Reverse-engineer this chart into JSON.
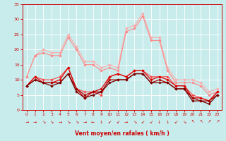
{
  "x": [
    0,
    1,
    2,
    3,
    4,
    5,
    6,
    7,
    8,
    9,
    10,
    11,
    12,
    13,
    14,
    15,
    16,
    17,
    18,
    19,
    20,
    21,
    22,
    23
  ],
  "series": [
    {
      "color": "#ffaaaa",
      "linewidth": 0.8,
      "marker": "D",
      "markersize": 1.8,
      "values": [
        11,
        18,
        20,
        19,
        19,
        25,
        21,
        16,
        16,
        14,
        15,
        14,
        27,
        28,
        32,
        24,
        24,
        14,
        10,
        10,
        10,
        9,
        6,
        7
      ]
    },
    {
      "color": "#ff8888",
      "linewidth": 0.8,
      "marker": "D",
      "markersize": 1.8,
      "values": [
        11,
        18,
        19,
        18,
        18,
        24,
        20,
        15,
        15,
        13,
        14,
        13,
        26,
        27,
        31,
        23,
        23,
        13,
        9,
        9,
        9,
        8,
        5,
        6
      ]
    },
    {
      "color": "#ff4444",
      "linewidth": 0.8,
      "marker": "D",
      "markersize": 1.8,
      "values": [
        8,
        11,
        10,
        10,
        11,
        14,
        7,
        6,
        6,
        5,
        11,
        12,
        11,
        13,
        13,
        11,
        11,
        11,
        8,
        8,
        5,
        4,
        3,
        6
      ]
    },
    {
      "color": "#dd0000",
      "linewidth": 0.9,
      "marker": "D",
      "markersize": 1.8,
      "values": [
        8,
        11,
        9,
        9,
        10,
        14,
        7,
        4,
        6,
        7,
        11,
        12,
        11,
        13,
        13,
        10,
        11,
        10,
        8,
        8,
        4,
        4,
        3,
        6
      ]
    },
    {
      "color": "#aa0000",
      "linewidth": 0.9,
      "marker": "D",
      "markersize": 1.8,
      "values": [
        8,
        10,
        9,
        9,
        9,
        12,
        7,
        5,
        6,
        6,
        10,
        10,
        10,
        12,
        12,
        9,
        10,
        9,
        7,
        7,
        4,
        3,
        3,
        5
      ]
    },
    {
      "color": "#770000",
      "linewidth": 0.9,
      "marker": "D",
      "markersize": 1.8,
      "values": [
        8,
        10,
        9,
        8,
        9,
        12,
        6,
        4,
        5,
        6,
        9,
        10,
        10,
        12,
        12,
        9,
        9,
        9,
        7,
        7,
        3,
        3,
        2,
        5
      ]
    }
  ],
  "xlabel": "Vent moyen/en rafales ( km/h )",
  "ylim": [
    0,
    35
  ],
  "xlim": [
    -0.5,
    23.5
  ],
  "yticks": [
    0,
    5,
    10,
    15,
    20,
    25,
    30,
    35
  ],
  "xticks": [
    0,
    1,
    2,
    3,
    4,
    5,
    6,
    7,
    8,
    9,
    10,
    11,
    12,
    13,
    14,
    15,
    16,
    17,
    18,
    19,
    20,
    21,
    22,
    23
  ],
  "bg_color": "#c8ecec",
  "grid_color": "#ffffff",
  "tick_color": "#cc0000",
  "label_color": "#cc0000",
  "wind_arrows": [
    "→",
    "→",
    "↘",
    "↘",
    "→",
    "↘",
    "↘",
    "→",
    "←",
    "↓",
    "↙",
    "↙",
    "→",
    "↘",
    "↙",
    "↙",
    "↓",
    "↓",
    "↙",
    "↘",
    "↖",
    "↖",
    "↗",
    "↗"
  ]
}
